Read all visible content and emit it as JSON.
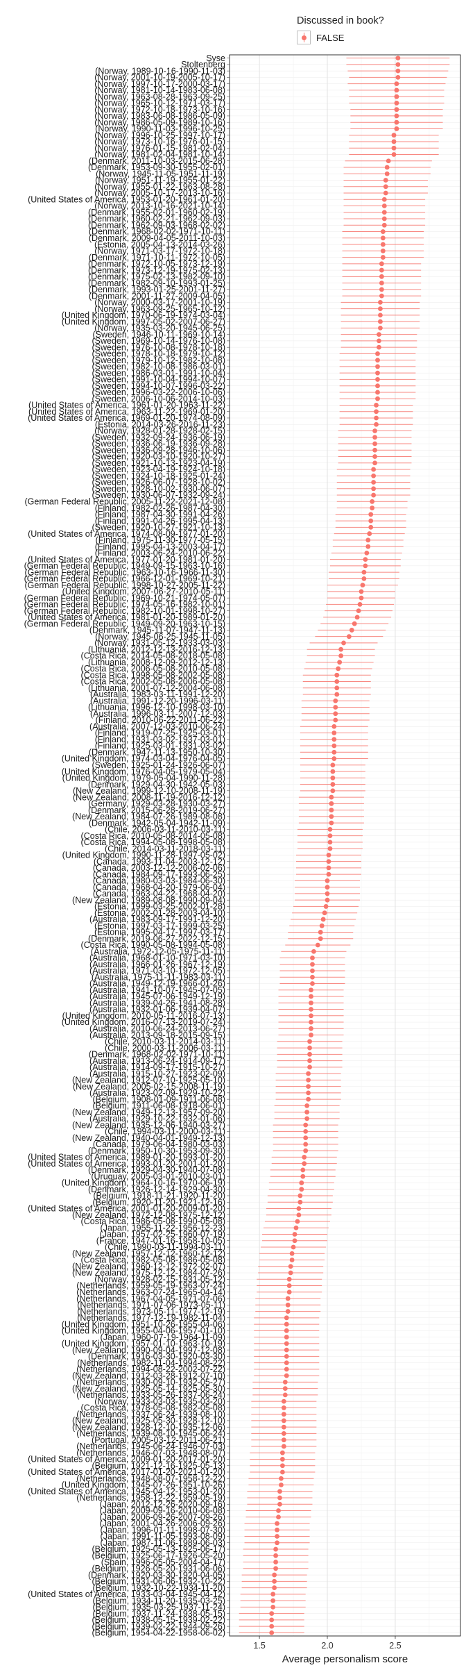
{
  "legend": {
    "title": "Discussed in book?",
    "entries": [
      {
        "label": "FALSE",
        "color": "#F8766D"
      }
    ]
  },
  "chart_data": {
    "type": "scatter",
    "title": "",
    "xlabel": "Average personalism score",
    "ylabel": "",
    "xlim": [
      1.28,
      2.98
    ],
    "x_ticks": [
      1.5,
      2.0,
      2.5
    ],
    "x_tick_labels": [
      "1.5",
      "2.0",
      "2.5"
    ],
    "grid": true,
    "legend_position": "top",
    "series": [
      {
        "name": "FALSE",
        "color": "#F8766D"
      }
    ],
    "points_order": "descending by estimate, top to bottom",
    "labels": [
      "Syse",
      "Stoltenberg",
      "(Norway, 1989-10-16-1990-11-03)",
      "(Norway, 2001-10-19-2005-10-17)",
      "(Norway, 1997-10-17-2000-03-17)",
      "(Norway, 1981-10-14-1983-06-08)",
      "(Norway, 1963-08-28-1963-09-25)",
      "(Norway, 1965-10-12-1971-03-17)",
      "(Norway, 1972-10-18-1973-10-16)",
      "(Norway, 1983-06-08-1986-05-09)",
      "(Norway, 1986-05-09-1989-10-16)",
      "(Norway, 1990-11-03-1996-10-25)",
      "(Norway, 1996-10-25-1997-10-17)",
      "(Norway, 1973-10-16-1976-01-15)",
      "(Norway, 1976-01-15-1981-02-04)",
      "(Norway, 1981-02-04-1981-10-14)",
      "(Denmark, 2011-10-03-2015-06-28)",
      "(Denmark, 1953-09-30-1955-02-01)",
      "(Norway, 1945-11-05-1951-11-19)",
      "(Norway, 1951-11-19-1955-01-22)",
      "(Norway, 1955-01-22-1963-08-28)",
      "(Norway, 2005-10-17-2013-10-16)",
      "(United States of America, 1953-01-20-1961-01-20)",
      "(Norway, 2013-10-16-2021-10-14)",
      "(Denmark, 1955-02-01-1960-02-19)",
      "(Denmark, 1960-02-21-1962-09-03)",
      "(Denmark, 1962-09-03-1968-02-02)",
      "(Denmark, 1968-02-02-1971-10-11)",
      "(Denmark, 2009-04-05-2011-10-03)",
      "(Estonia, 2005-04-13-2014-03-26)",
      "(Norway, 1971-03-17-1972-10-18)",
      "(Denmark, 1971-10-11-1972-10-05)",
      "(Denmark, 1972-10-05-1973-12-19)",
      "(Denmark, 1973-12-19-1975-02-13)",
      "(Denmark, 1975-02-13-1982-09-10)",
      "(Denmark, 1982-09-10-1993-01-25)",
      "(Denmark, 1993-01-25-2001-11-27)",
      "(Denmark, 2001-11-27-2009-04-05)",
      "(Norway, 2000-03-17-2001-10-19)",
      "(Norway, 1963-09-25-1965-10-12)",
      "(United Kingdom, 1970-06-19-1974-03-04)",
      "(United Kingdom, 1997-05-02-2007-06-27)",
      "(Norway, 1935-03-20-1945-06-25)",
      "(Sweden, 1946-10-11-1969-10-14)",
      "(Sweden, 1969-10-14-1976-10-08)",
      "(Sweden, 1976-10-08-1978-10-18)",
      "(Sweden, 1978-10-18-1979-10-12)",
      "(Sweden, 1979-10-12-1982-10-08)",
      "(Sweden, 1982-10-08-1986-03-01)",
      "(Sweden, 1986-03-01-1991-10-04)",
      "(Sweden, 1991-10-04-1994-10-07)",
      "(Sweden, 1994-10-07-1996-03-22)",
      "(Sweden, 1996-03-22-2006-10-06)",
      "(Sweden, 2006-10-06-2014-10-03)",
      "(United States of America, 1961-01-20-1963-11-22)",
      "(United States of America, 1963-11-22-1969-01-20)",
      "(United States of America, 1969-01-20-1974-08-09)",
      "(Estonia, 2014-03-26-2016-11-23)",
      "(Norway, 1928-01-28-1928-02-15)",
      "(Sweden, 1932-09-24-1936-06-19)",
      "(Sweden, 1936-06-19-1936-09-28)",
      "(Sweden, 1936-09-28-1946-10-06)",
      "(Sweden, 1920-03-10-1920-10-27)",
      "(Sweden, 1921-10-13-1923-04-19)",
      "(Sweden, 1923-04-19-1924-10-18)",
      "(Sweden, 1924-10-18-1925-01-24)",
      "(Sweden, 1926-06-07-1928-10-02)",
      "(Sweden, 1928-10-02-1930-06-07)",
      "(Sweden, 1930-06-07-1932-09-24)",
      "(German Federal Republic, 2005-11-22-2021-12-08)",
      "(Finland, 1982-02-26-1987-04-30)",
      "(Finland, 1987-04-30-1991-04-26)",
      "(Finland, 1991-04-26-1995-04-13)",
      "(Sweden, 1920-10-27-1921-10-13)",
      "(United States of America, 1974-08-09-1977-01-20)",
      "(Finland, 1975-11-30-1977-05-15)",
      "(Finland, 1995-04-13-2003-04-17)",
      "(Finland, 2003-06-24-2010-06-22)",
      "(United States of America, 1977-01-20-1981-01-20)",
      "(German Federal Republic, 1949-09-15-1963-10-16)",
      "(German Federal Republic, 1963-10-16-1966-11-30)",
      "(German Federal Republic, 1966-12-01-1969-10-21)",
      "(German Federal Republic, 1998-10-27-2005-11-22)",
      "(United Kingdom, 2007-06-27-2010-05-11)",
      "(German Federal Republic, 1969-10-21-1974-05-07)",
      "(German Federal Republic, 1974-05-16-1982-10-01)",
      "(German Federal Republic, 1982-10-01-1998-10-27)",
      "(United States of America, 1981-01-20-1989-01-20)",
      "(German Federal Republic, 1949-09-20-1963-10-15)",
      "(Denmark, 1945-11-07-1947-11-13)",
      "(Norway, 1945-06-25-1945-11-05)",
      "(Norway, 1931-05-12-1933-03-03)",
      "(Lithuania, 2012-12-13-2016-12-13)",
      "(Costa Rica, 2014-05-08-2018-05-08)",
      "(Lithuania, 2008-12-09-2012-12-13)",
      "(Costa Rica, 2006-05-08-2010-05-08)",
      "(Costa Rica, 1998-05-08-2002-05-08)",
      "(Costa Rica, 2002-05-08-2006-05-08)",
      "(Lithuania, 2001-07-12-2004-06-08)",
      "(Australia, 1983-03-11-1991-12-20)",
      "(Australia, 1991-12-20-1996-03-11)",
      "(Lithuania, 1996-12-10-1998-03-10)",
      "(Australia, 1996-03-11-2007-12-03)",
      "(Finland, 2010-06-22-2011-06-22)",
      "(Australia, 2007-12-03-2010-06-24)",
      "(Finland, 1919-07-25-1925-03-01)",
      "(Finland, 1931-03-02-1937-03-01)",
      "(Finland, 1925-03-01-1931-03-02)",
      "(Denmark, 1947-11-13-1950-10-30)",
      "(United Kingdom, 1974-03-04-1976-04-05)",
      "(Sweden, 1925-01-24-1926-06-07)",
      "(United Kingdom, 1976-04-05-1979-05-04)",
      "(United Kingdom, 1979-05-04-1990-11-28)",
      "(Denmark, 1929-04-30-1942-05-03)",
      "(New Zealand, 1999-12-10-2008-11-19)",
      "(New Zealand, 2008-11-19-2016-12-12)",
      "(Germany, 1929-03-28-1930-03-27)",
      "(Denmark, 2015-06-28-2019-06-27)",
      "(New Zealand, 1984-07-26-1989-08-08)",
      "(Denmark, 1942-05-04-1942-11-09)",
      "(Chile, 2006-03-11-2010-03-11)",
      "(Costa Rica, 2010-05-08-2014-05-08)",
      "(Costa Rica, 1994-05-08-1998-05-08)",
      "(Chile, 2014-03-11-2018-03-11)",
      "(United Kingdom, 1990-11-28-1997-05-02)",
      "(Canada, 1993-11-04-2003-12-12)",
      "(Canada, 2003-12-12-2006-02-06)",
      "(Canada, 1984-09-17-1993-06-25)",
      "(Canada, 1980-03-03-1984-06-30)",
      "(Canada, 1968-04-20-1979-06-04)",
      "(Canada, 1963-04-22-1968-04-20)",
      "(New Zealand, 1989-08-08-1990-09-04)",
      "(Estonia, 1999-03-25-2002-01-28)",
      "(Estonia, 2002-01-28-2003-04-10)",
      "(Australia, 1983-09-17-1991-12-20)",
      "(Estonia, 1997-03-17-1999-03-25)",
      "(Estonia, 1995-04-17-1997-03-17)",
      "(Denmark, 2019-06-27-2022-12-15)",
      "(Costa Rica, 1990-05-08-1994-05-08)",
      "(Australia, 1972-12-05-1975-11-11)",
      "(Australia, 1968-01-10-1971-03-10)",
      "(Australia, 1966-01-26-1967-12-19)",
      "(Australia, 1971-03-10-1972-12-05)",
      "(Australia, 1975-11-11-1983-03-11)",
      "(Australia, 1949-12-19-1966-01-26)",
      "(Australia, 1941-10-07-1945-07-05)",
      "(Australia, 1945-07-06-1949-12-19)",
      "(Australia, 1939-04-26-1941-08-28)",
      "(Australia, 1932-01-06-1939-04-07)",
      "(United Kingdom, 2010-05-11-2016-07-13)",
      "(United Kingdom, 2016-07-13-2019-07-24)",
      "(Australia, 2010-06-24-2013-06-27)",
      "(Australia, 2013-09-18-2015-09-15)",
      "(Chile, 2010-03-11-2014-03-11)",
      "(Chile, 2000-03-11-2006-03-11)",
      "(Denmark, 1968-02-02-1971-10-11)",
      "(Australia, 1913-06-24-1914-09-17)",
      "(Australia, 1914-09-17-1915-10-27)",
      "(Australia, 1915-10-27-1923-02-09)",
      "(New Zealand, 1912-07-10-1925-05-10)",
      "(New Zealand, 2005-02-15-2008-11-19)",
      "(Australia, 1923-02-09-1929-10-22)",
      "(Belgium, 1908-01-09-1911-06-08)",
      "(Belgium, 1911-06-08-1918-06-01)",
      "(New Zealand, 1949-12-13-1957-09-20)",
      "(Australia, 1929-10-22-1932-01-06)",
      "(New Zealand, 1935-12-06-1940-03-27)",
      "(Chile, 1994-03-11-2000-03-11)",
      "(New Zealand, 1940-04-01-1949-12-13)",
      "(Canada, 1979-06-04-1980-03-03)",
      "(Denmark, 1950-10-30-1953-09-30)",
      "(United States of America, 1989-01-20-1993-01-20)",
      "(United States of America, 1993-01-20-2001-01-20)",
      "(Denmark, 1929-04-30-1940-07-08)",
      "(Uruguay, 2005-03-01-2010-03-01)",
      "(United Kingdom, 1964-10-16-1970-06-19)",
      "(Denmark, 1926-12-14-1929-04-30)",
      "(Belgium, 1918-11-21-1920-11-20)",
      "(Belgium, 1920-11-20-1921-12-16)",
      "(United States of America, 2001-01-20-2009-01-20)",
      "(New Zealand, 1972-12-08-1975-12-12)",
      "(Costa Rica, 1986-05-08-1990-05-08)",
      "(Japan, 1955-11-22-1956-12-23)",
      "(Japan, 1957-02-25-1960-07-19)",
      "(France, 1947-01-16-1958-10-05)",
      "(Chile, 1990-03-11-1994-03-11)",
      "(New Zealand, 1957-12-12-1960-12-12)",
      "(Costa Rica, 1982-05-08-1986-05-08)",
      "(New Zealand, 1960-12-12-1972-02-07)",
      "(New Zealand, 1975-12-12-1984-07-26)",
      "(Norway, 1928-02-15-1931-05-12)",
      "(Netherlands, 1959-05-19-1963-07-24)",
      "(Netherlands, 1963-07-24-1965-04-14)",
      "(Netherlands, 1967-04-05-1971-07-06)",
      "(Netherlands, 1971-07-06-1973-05-11)",
      "(Netherlands, 1973-05-11-1977-12-19)",
      "(Netherlands, 1977-12-19-1982-11-04)",
      "(United Kingdom, 1951-10-26-1955-04-06)",
      "(United Kingdom, 1955-04-06-1957-01-10)",
      "(Japan, 1960-07-19-1964-11-09)",
      "(United Kingdom, 1957-01-10-1963-10-19)",
      "(New Zealand, 1990-09-04-1997-12-08)",
      "(Denmark, 1916-03-30-1920-03-30)",
      "(Netherlands, 1982-11-04-1994-08-22)",
      "(Netherlands, 1994-08-22-2002-07-22)",
      "(New Zealand, 1912-03-28-1912-07-10)",
      "(Netherlands, 1930-09-10-1932-05-27)",
      "(New Zealand, 1925-05-14-1925-05-30)",
      "(Netherlands, 1933-05-26-1937-06-24)",
      "(Norway, 1933-03-03-1935-03-20)",
      "(Costa Rica, 1978-05-08-1982-05-08)",
      "(Netherlands, 1937-06-24-1939-08-10)",
      "(New Zealand, 1925-05-30-1928-12-10)",
      "(New Zealand, 1928-12-10-1935-12-06)",
      "(Netherlands, 1939-08-10-1945-06-24)",
      "(Portugal, 2005-03-12-2011-06-21)",
      "(Netherlands, 1945-06-24-1946-07-03)",
      "(Netherlands, 1946-07-03-1948-08-07)",
      "(United States of America, 2009-01-20-2017-01-20)",
      "(Belgium, 1921-12-16-1925-05-13)",
      "(United States of America, 2017-01-20-2021-01-20)",
      "(Netherlands, 1948-08-07-1958-12-22)",
      "(United Kingdom, 1945-07-26-1951-10-26)",
      "(United States of America, 1945-04-12-1953-01-20)",
      "(Netherlands, 1958-12-22-1959-05-19)",
      "(Japan, 2012-12-26-2020-09-16)",
      "(Japan, 2009-09-16-2010-06-08)",
      "(Japan, 2006-09-26-2007-09-26)",
      "(Japan, 2001-04-26-2006-09-26)",
      "(Japan, 1996-01-11-1998-07-30)",
      "(Japan, 1991-11-05-1993-08-09)",
      "(Japan, 1987-11-06-1989-06-03)",
      "(Belgium, 1925-05-13-1925-06-17)",
      "(Belgium, 1925-06-17-1926-05-20)",
      "(Spain, 1996-05-05-2004-04-17)",
      "(Belgium, 1926-05-20-1931-06-06)",
      "(Denmark, 1920-03-30-1920-04-05)",
      "(Belgium, 1931-06-06-1932-10-22)",
      "(Belgium, 1932-10-22-1934-11-20)",
      "(United States of America, 1933-03-04-1945-04-12)",
      "(Belgium, 1934-11-20-1935-03-25)",
      "(Belgium, 1935-03-25-1937-11-24)",
      "(Belgium, 1937-11-24-1938-05-15)",
      "(Belgium, 1938-05-15-1939-02-22)",
      "(Belgium, 1939-02-22-1944-09-26)",
      "(Belgium, 1954-04-22-1958-06-02)"
    ],
    "x": [
      2.52,
      2.52,
      2.52,
      2.52,
      2.51,
      2.51,
      2.51,
      2.51,
      2.51,
      2.51,
      2.51,
      2.51,
      2.49,
      2.49,
      2.49,
      2.49,
      2.45,
      2.44,
      2.44,
      2.43,
      2.43,
      2.43,
      2.42,
      2.42,
      2.42,
      2.42,
      2.42,
      2.41,
      2.41,
      2.41,
      2.41,
      2.41,
      2.4,
      2.4,
      2.4,
      2.4,
      2.4,
      2.4,
      2.39,
      2.39,
      2.39,
      2.39,
      2.39,
      2.38,
      2.38,
      2.38,
      2.37,
      2.37,
      2.37,
      2.37,
      2.37,
      2.37,
      2.37,
      2.37,
      2.36,
      2.36,
      2.36,
      2.36,
      2.35,
      2.35,
      2.35,
      2.35,
      2.35,
      2.35,
      2.34,
      2.34,
      2.34,
      2.34,
      2.34,
      2.33,
      2.33,
      2.32,
      2.32,
      2.32,
      2.31,
      2.3,
      2.3,
      2.29,
      2.28,
      2.28,
      2.27,
      2.27,
      2.26,
      2.25,
      2.25,
      2.24,
      2.23,
      2.22,
      2.2,
      2.18,
      2.16,
      2.12,
      2.1,
      2.1,
      2.09,
      2.08,
      2.07,
      2.07,
      2.07,
      2.07,
      2.06,
      2.06,
      2.06,
      2.06,
      2.05,
      2.05,
      2.05,
      2.05,
      2.05,
      2.05,
      2.04,
      2.04,
      2.04,
      2.04,
      2.04,
      2.03,
      2.03,
      2.03,
      2.03,
      2.03,
      2.02,
      2.02,
      2.02,
      2.02,
      2.01,
      2.01,
      2.01,
      2.01,
      2.0,
      2.0,
      2.0,
      2.0,
      1.99,
      1.98,
      1.97,
      1.96,
      1.95,
      1.95,
      1.93,
      1.9,
      1.89,
      1.89,
      1.89,
      1.89,
      1.89,
      1.88,
      1.88,
      1.88,
      1.88,
      1.88,
      1.88,
      1.88,
      1.88,
      1.87,
      1.87,
      1.87,
      1.87,
      1.87,
      1.86,
      1.86,
      1.86,
      1.86,
      1.86,
      1.85,
      1.85,
      1.85,
      1.84,
      1.84,
      1.84,
      1.84,
      1.84,
      1.83,
      1.83,
      1.82,
      1.82,
      1.81,
      1.81,
      1.8,
      1.8,
      1.79,
      1.79,
      1.78,
      1.77,
      1.76,
      1.76,
      1.75,
      1.74,
      1.74,
      1.73,
      1.73,
      1.72,
      1.72,
      1.72,
      1.71,
      1.71,
      1.71,
      1.7,
      1.7,
      1.7,
      1.7,
      1.7,
      1.7,
      1.7,
      1.7,
      1.7,
      1.7,
      1.69,
      1.69,
      1.69,
      1.68,
      1.68,
      1.68,
      1.68,
      1.68,
      1.68,
      1.68,
      1.68,
      1.67,
      1.67,
      1.67,
      1.67,
      1.66,
      1.66,
      1.65,
      1.65,
      1.65,
      1.64,
      1.64,
      1.63,
      1.63,
      1.63,
      1.63,
      1.62,
      1.62,
      1.62,
      1.62,
      1.61,
      1.61,
      1.61,
      1.6,
      1.6,
      1.6,
      1.59,
      1.59,
      1.59,
      1.59,
      1.59,
      1.58,
      1.58,
      1.58,
      1.58,
      1.58,
      1.58,
      1.58,
      1.58,
      1.58
    ],
    "ci_half_width": [
      0.38,
      0.38,
      0.37,
      0.36,
      0.36,
      0.35,
      0.35,
      0.35,
      0.34,
      0.34,
      0.34,
      0.34,
      0.33,
      0.33,
      0.33,
      0.33,
      0.32,
      0.32,
      0.32,
      0.31,
      0.31,
      0.31,
      0.3,
      0.3,
      0.3,
      0.3,
      0.3,
      0.3,
      0.3,
      0.3,
      0.3,
      0.3,
      0.29,
      0.29,
      0.29,
      0.29,
      0.29,
      0.29,
      0.29,
      0.29,
      0.29,
      0.29,
      0.29,
      0.28,
      0.28,
      0.28,
      0.28,
      0.28,
      0.28,
      0.28,
      0.28,
      0.28,
      0.28,
      0.28,
      0.27,
      0.27,
      0.27,
      0.27,
      0.27,
      0.27,
      0.27,
      0.27,
      0.27,
      0.27,
      0.27,
      0.27,
      0.27,
      0.27,
      0.27,
      0.26,
      0.26,
      0.26,
      0.26,
      0.26,
      0.26,
      0.26,
      0.26,
      0.26,
      0.26,
      0.26,
      0.26,
      0.26,
      0.26,
      0.25,
      0.25,
      0.25,
      0.25,
      0.25,
      0.25,
      0.25,
      0.25,
      0.25,
      0.25,
      0.25,
      0.25,
      0.25,
      0.25,
      0.25,
      0.25,
      0.25,
      0.25,
      0.25,
      0.25,
      0.25,
      0.25,
      0.25,
      0.25,
      0.25,
      0.25,
      0.25,
      0.24,
      0.24,
      0.24,
      0.24,
      0.24,
      0.24,
      0.24,
      0.24,
      0.24,
      0.24,
      0.24,
      0.24,
      0.24,
      0.24,
      0.24,
      0.24,
      0.24,
      0.24,
      0.24,
      0.24,
      0.24,
      0.24,
      0.24,
      0.24,
      0.24,
      0.24,
      0.24,
      0.24,
      0.24,
      0.24,
      0.24,
      0.24,
      0.24,
      0.24,
      0.24,
      0.24,
      0.24,
      0.24,
      0.24,
      0.24,
      0.24,
      0.24,
      0.24,
      0.24,
      0.24,
      0.24,
      0.24,
      0.24,
      0.24,
      0.24,
      0.24,
      0.24,
      0.24,
      0.24,
      0.24,
      0.24,
      0.24,
      0.24,
      0.24,
      0.24,
      0.24,
      0.24,
      0.24,
      0.24,
      0.24,
      0.24,
      0.24,
      0.24,
      0.24,
      0.24,
      0.24,
      0.24,
      0.24,
      0.24,
      0.24,
      0.24,
      0.24,
      0.24,
      0.24,
      0.24,
      0.24,
      0.24,
      0.24,
      0.24,
      0.24,
      0.24,
      0.24,
      0.24,
      0.24,
      0.24,
      0.24,
      0.24,
      0.24,
      0.24,
      0.24,
      0.24,
      0.24,
      0.24,
      0.24,
      0.24,
      0.24,
      0.24,
      0.24,
      0.24,
      0.24,
      0.24,
      0.24,
      0.24,
      0.24,
      0.24,
      0.24,
      0.24,
      0.24,
      0.24,
      0.24,
      0.24,
      0.24,
      0.24,
      0.24,
      0.24,
      0.24,
      0.24,
      0.24,
      0.24,
      0.24,
      0.24,
      0.24,
      0.24,
      0.24,
      0.24,
      0.24,
      0.24,
      0.24,
      0.24,
      0.24,
      0.24,
      0.24,
      0.24,
      0.24,
      0.24,
      0.24,
      0.24,
      0.24,
      0.24,
      0.24
    ]
  }
}
